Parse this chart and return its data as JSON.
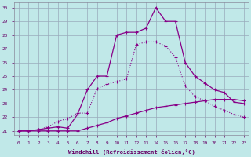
{
  "xlabel": "Windchill (Refroidissement éolien,°C)",
  "bg_color": "#c0e8e8",
  "grid_color": "#99aabb",
  "purple": "#880088",
  "xlim": [
    -0.5,
    23.5
  ],
  "ylim": [
    20.7,
    30.4
  ],
  "xticks": [
    0,
    1,
    2,
    3,
    4,
    5,
    6,
    7,
    8,
    9,
    10,
    11,
    12,
    13,
    14,
    15,
    16,
    17,
    18,
    19,
    20,
    21,
    22,
    23
  ],
  "yticks": [
    21,
    22,
    23,
    24,
    25,
    26,
    27,
    28,
    29,
    30
  ],
  "x": [
    0,
    1,
    2,
    3,
    4,
    5,
    6,
    7,
    8,
    9,
    10,
    11,
    12,
    13,
    14,
    15,
    16,
    17,
    18,
    19,
    20,
    21,
    22,
    23
  ],
  "line_peak_y": [
    21.0,
    21.0,
    21.1,
    21.2,
    21.3,
    21.2,
    22.2,
    24.0,
    25.0,
    25.0,
    28.0,
    28.2,
    28.2,
    28.5,
    30.0,
    29.0,
    29.0,
    26.0,
    25.0,
    24.5,
    24.0,
    23.8,
    23.1,
    23.0
  ],
  "line_mid_y": [
    21.0,
    21.0,
    21.1,
    21.3,
    21.7,
    21.9,
    22.3,
    22.3,
    24.1,
    24.4,
    24.6,
    24.8,
    27.3,
    27.5,
    27.5,
    27.2,
    26.4,
    24.3,
    23.5,
    23.2,
    22.8,
    22.5,
    22.2,
    22.0
  ],
  "line_bot_y": [
    21.0,
    21.0,
    21.0,
    21.0,
    21.0,
    21.0,
    21.0,
    21.2,
    21.4,
    21.6,
    21.9,
    22.1,
    22.3,
    22.5,
    22.7,
    22.8,
    22.9,
    23.0,
    23.1,
    23.2,
    23.3,
    23.3,
    23.3,
    23.2
  ]
}
